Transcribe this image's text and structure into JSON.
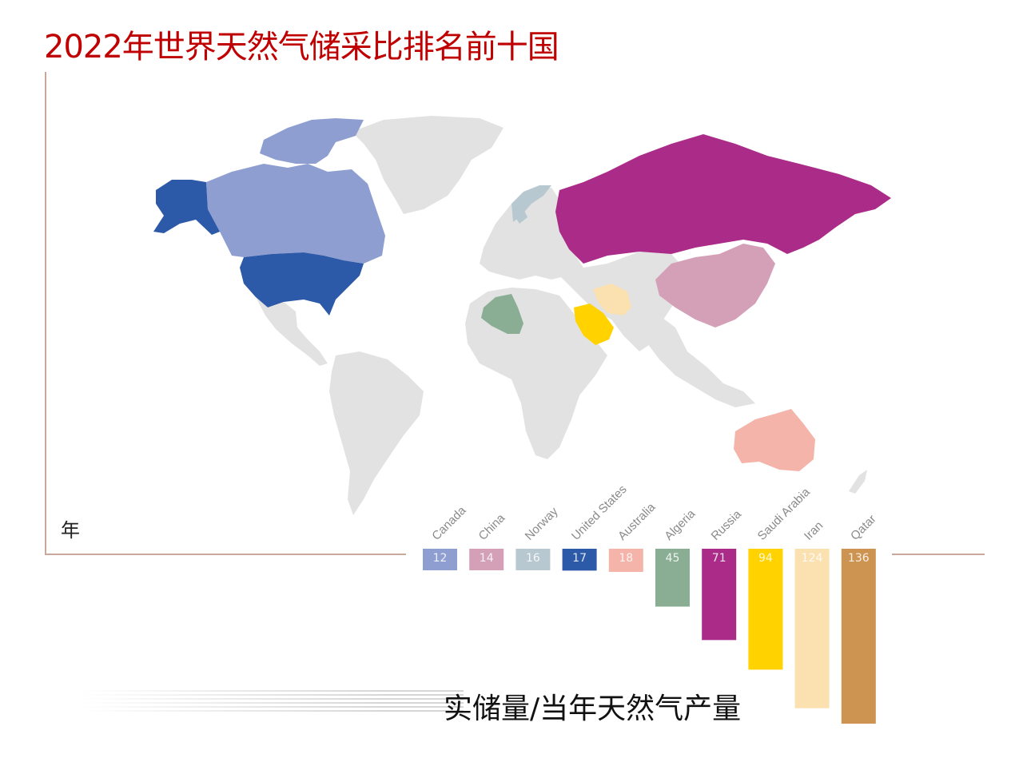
{
  "title": "2022年世界天然气储采比排名前十国",
  "unit_label": "年",
  "caption": "实储量/当年天然气产量",
  "colors": {
    "land": "#e0e0e0",
    "axis": "#c8a898",
    "title": "#c00000"
  },
  "chart_data": {
    "type": "bar",
    "title": "2022年世界天然气储采比排名前十国",
    "ylabel": "年",
    "categories": [
      "Canada",
      "China",
      "Norway",
      "United States",
      "Australia",
      "Algeria",
      "Russia",
      "Saudi Arabia",
      "Iran",
      "Qatar"
    ],
    "values": [
      12,
      14,
      16,
      17,
      18,
      45,
      71,
      94,
      124,
      136
    ],
    "value_labels": [
      "12",
      "14",
      "16",
      "17",
      "18",
      "45",
      "71",
      "94",
      "124",
      "136"
    ],
    "colors": [
      "#8e9ed0",
      "#d4a0b8",
      "#b8c8d0",
      "#2c5aa8",
      "#f4b4aa",
      "#8aae94",
      "#aa2c88",
      "#ffd200",
      "#fbe0b0",
      "#cc9450"
    ],
    "ylim": [
      0,
      136
    ],
    "grid": false,
    "legend": "none"
  }
}
